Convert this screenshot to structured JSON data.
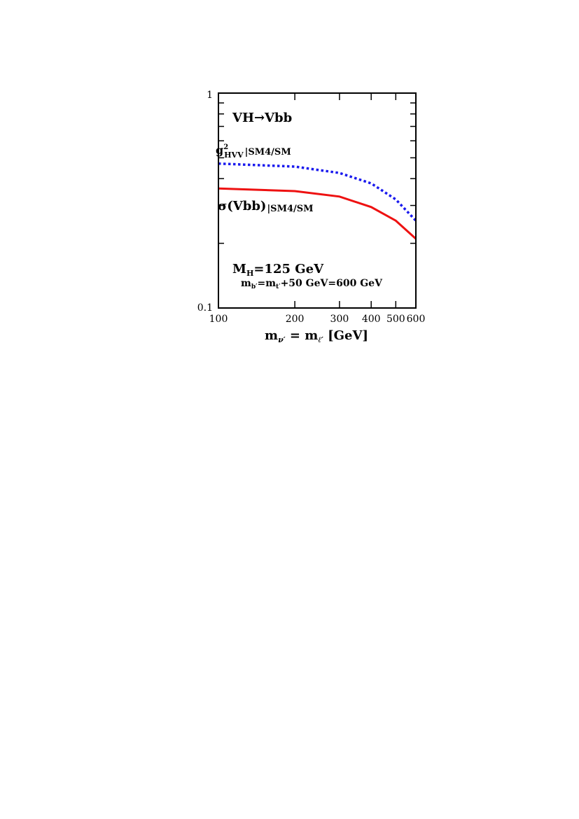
{
  "chart_data": {
    "type": "line",
    "xscale": "log",
    "yscale": "log",
    "xlim": [
      100,
      600
    ],
    "ylim": [
      0.1,
      1
    ],
    "grid": false,
    "x_ticks": [
      100,
      200,
      300,
      400,
      500,
      600
    ],
    "x_tick_labels": [
      "100",
      "200",
      "300",
      "400",
      "500",
      "600"
    ],
    "y_tick_labels": [
      "1",
      "0.1"
    ],
    "xlabel": {
      "main": "m",
      "sub1": "ν′",
      "eq": " = m",
      "sub2": "ℓ′",
      "unit": " [GeV]"
    },
    "series": [
      {
        "label_main": "g",
        "label_sup": "2",
        "label_sub": "HVV",
        "label_bar_sub": "|SM4/SM",
        "color": "#1a1aee",
        "style": "dotted",
        "points": [
          [
            100,
            0.47
          ],
          [
            200,
            0.455
          ],
          [
            300,
            0.425
          ],
          [
            400,
            0.38
          ],
          [
            500,
            0.32
          ],
          [
            600,
            0.255
          ]
        ]
      },
      {
        "label_main": "σ(Vbb)",
        "label_bar_sub": "|SM4/SM",
        "color": "#ee1111",
        "style": "solid",
        "points": [
          [
            100,
            0.36
          ],
          [
            200,
            0.35
          ],
          [
            300,
            0.33
          ],
          [
            400,
            0.295
          ],
          [
            500,
            0.255
          ],
          [
            600,
            0.21
          ]
        ]
      }
    ],
    "annotations": {
      "process": "VH→Vbb",
      "mh_main": "M",
      "mh_sub": "H",
      "mh_rest": "=125 GeV",
      "mb_1": "m",
      "mb_1_sub": "b′",
      "mb_2": "=m",
      "mb_2_sub": "t′",
      "mb_rest": "+50 GeV=600 GeV"
    }
  }
}
